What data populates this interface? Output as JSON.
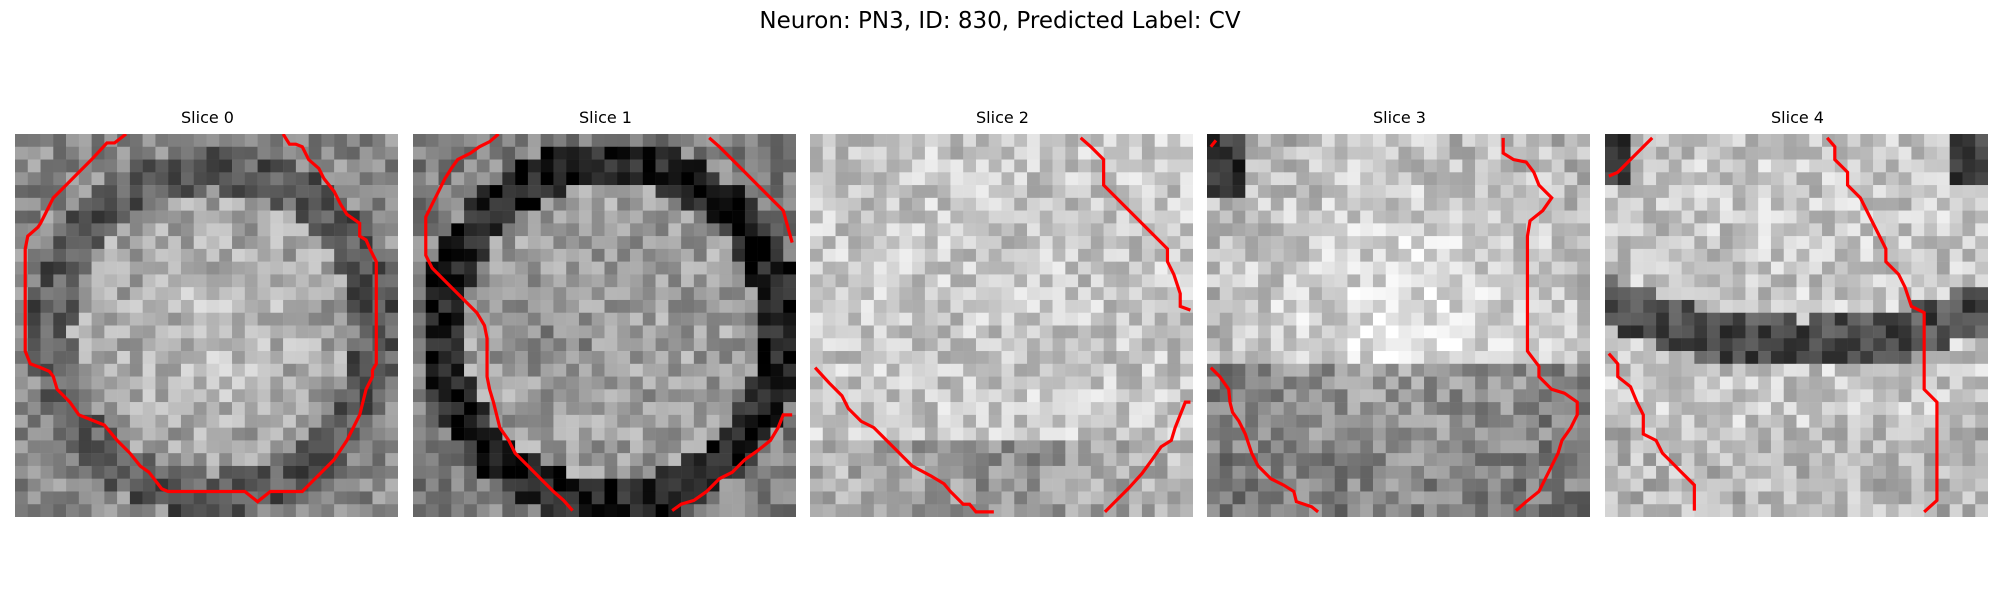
{
  "figure": {
    "title": "Neuron: PN3, ID: 830, Predicted Label: CV"
  },
  "colors": {
    "contour": "#ff0000",
    "background": "#ffffff"
  },
  "panels": [
    {
      "title": "Slice 0",
      "pattern": "ring-dark-soft",
      "seed": 11
    },
    {
      "title": "Slice 1",
      "pattern": "ring-dark-strong",
      "seed": 23
    },
    {
      "title": "Slice 2",
      "pattern": "light-noisy",
      "seed": 37
    },
    {
      "title": "Slice 3",
      "pattern": "bright-center",
      "seed": 41
    },
    {
      "title": "Slice 4",
      "pattern": "dark-band",
      "seed": 53
    }
  ]
}
